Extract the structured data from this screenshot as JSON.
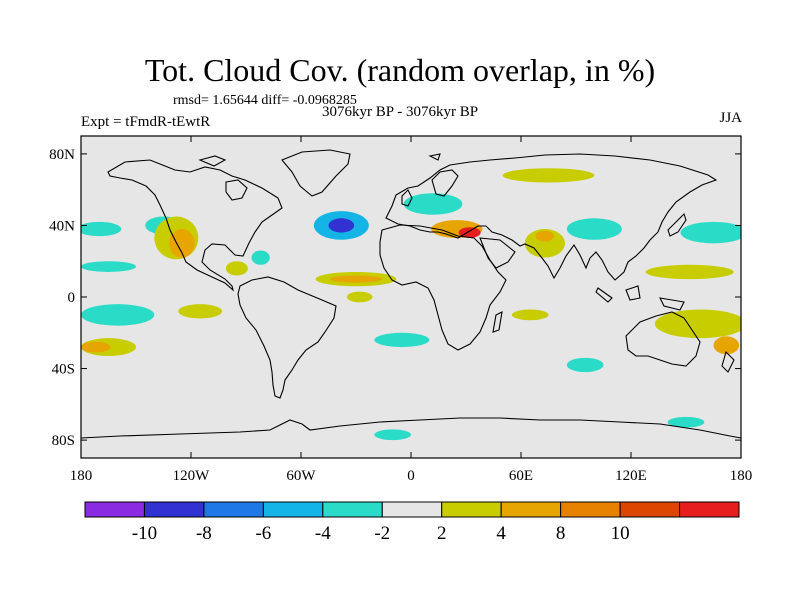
{
  "title": "Tot. Cloud Cov. (random overlap, in %)",
  "stats_text": "rmsd= 1.65644 diff= -0.0968285",
  "period_text": "3076kyr BP - 3076kyr BP",
  "experiment_text": "Expt = tFmdR-tEwtR",
  "season": "JJA",
  "lat_ticks": [
    {
      "lat": 80,
      "label": "80N"
    },
    {
      "lat": 40,
      "label": "40N"
    },
    {
      "lat": 0,
      "label": "0"
    },
    {
      "lat": -40,
      "label": "40S"
    },
    {
      "lat": -80,
      "label": "80S"
    }
  ],
  "lon_ticks": [
    {
      "lon": -180,
      "label": "180"
    },
    {
      "lon": -120,
      "label": "120W"
    },
    {
      "lon": -60,
      "label": "60W"
    },
    {
      "lon": 0,
      "label": "0"
    },
    {
      "lon": 60,
      "label": "60E"
    },
    {
      "lon": 120,
      "label": "120E"
    },
    {
      "lon": 180,
      "label": "180"
    }
  ],
  "colorbar": {
    "colors": [
      "#8a2be2",
      "#3232d2",
      "#1e78e6",
      "#14b4e6",
      "#2adcc8",
      "#e6e6e6",
      "#c8cd00",
      "#e6a500",
      "#e68200",
      "#dc4600",
      "#e61e1e"
    ],
    "labels": [
      "-10",
      "-8",
      "-6",
      "-4",
      "-2",
      "2",
      "4",
      "8",
      "10"
    ]
  },
  "colors": {
    "background": "#e6e6e6",
    "coast": "#000000"
  },
  "anomalies": [
    {
      "name": "n-atlantic-low",
      "lon": -38,
      "lat": 40,
      "rx": 15,
      "ry": 8,
      "level": -4
    },
    {
      "name": "n-atlantic-low-core",
      "lon": -38,
      "lat": 40,
      "rx": 7,
      "ry": 4,
      "level": -8
    },
    {
      "name": "n-pacific-low-w",
      "lon": -170,
      "lat": 38,
      "rx": 12,
      "ry": 4,
      "level": -2
    },
    {
      "name": "n-pacific-low-e",
      "lon": -135,
      "lat": 40,
      "rx": 10,
      "ry": 5,
      "level": -2
    },
    {
      "name": "ne-pacific-high",
      "lon": -128,
      "lat": 33,
      "rx": 12,
      "ry": 12,
      "level": 2
    },
    {
      "name": "ne-pacific-high-core",
      "lon": -125,
      "lat": 30,
      "rx": 7,
      "ry": 8,
      "level": 4
    },
    {
      "name": "gulf-low",
      "lon": -82,
      "lat": 22,
      "rx": 5,
      "ry": 4,
      "level": -2
    },
    {
      "name": "mexico-high",
      "lon": -95,
      "lat": 16,
      "rx": 6,
      "ry": 4,
      "level": 2
    },
    {
      "name": "itcz-high",
      "lon": -30,
      "lat": 10,
      "rx": 22,
      "ry": 4,
      "level": 2
    },
    {
      "name": "itcz-core",
      "lon": -30,
      "lat": 10,
      "rx": 14,
      "ry": 2,
      "level": 4
    },
    {
      "name": "eq-atlantic-high",
      "lon": -28,
      "lat": 0,
      "rx": 7,
      "ry": 3,
      "level": 2
    },
    {
      "name": "europe-low",
      "lon": 12,
      "lat": 52,
      "rx": 16,
      "ry": 6,
      "level": -2
    },
    {
      "name": "med-high",
      "lon": 25,
      "lat": 38,
      "rx": 14,
      "ry": 5,
      "level": 4
    },
    {
      "name": "med-core",
      "lon": 32,
      "lat": 36,
      "rx": 6,
      "ry": 3,
      "level": 10
    },
    {
      "name": "siberia-high",
      "lon": 75,
      "lat": 68,
      "rx": 25,
      "ry": 4,
      "level": 2
    },
    {
      "name": "india-high",
      "lon": 73,
      "lat": 30,
      "rx": 11,
      "ry": 8,
      "level": 2
    },
    {
      "name": "india-core",
      "lon": 73,
      "lat": 34,
      "rx": 5,
      "ry": 3,
      "level": 4
    },
    {
      "name": "tibet-low",
      "lon": 100,
      "lat": 38,
      "rx": 15,
      "ry": 6,
      "level": -2
    },
    {
      "name": "nw-pacific-low",
      "lon": 165,
      "lat": 36,
      "rx": 18,
      "ry": 6,
      "level": -2
    },
    {
      "name": "trop-w-pacific-high",
      "lon": 152,
      "lat": 14,
      "rx": 24,
      "ry": 4,
      "level": 2
    },
    {
      "name": "e-pacific-low",
      "lon": -165,
      "lat": 17,
      "rx": 15,
      "ry": 3,
      "level": -2
    },
    {
      "name": "sw-pacific-low",
      "lon": -160,
      "lat": -10,
      "rx": 20,
      "ry": 6,
      "level": -2
    },
    {
      "name": "e-pacific-high",
      "lon": -115,
      "lat": -8,
      "rx": 12,
      "ry": 4,
      "level": 2
    },
    {
      "name": "s-pacific-high",
      "lon": -165,
      "lat": -28,
      "rx": 15,
      "ry": 5,
      "level": 2
    },
    {
      "name": "s-pacific-core",
      "lon": -172,
      "lat": -28,
      "rx": 8,
      "ry": 3,
      "level": 4
    },
    {
      "name": "s-atlantic-low",
      "lon": -5,
      "lat": -24,
      "rx": 15,
      "ry": 4,
      "level": -2
    },
    {
      "name": "indian-ocean-high",
      "lon": 65,
      "lat": -10,
      "rx": 10,
      "ry": 3,
      "level": 2
    },
    {
      "name": "australia-high",
      "lon": 158,
      "lat": -15,
      "rx": 25,
      "ry": 8,
      "level": 2
    },
    {
      "name": "australia-core",
      "lon": 172,
      "lat": -27,
      "rx": 7,
      "ry": 5,
      "level": 4
    },
    {
      "name": "s-indian-low",
      "lon": 95,
      "lat": -38,
      "rx": 10,
      "ry": 4,
      "level": -2
    },
    {
      "name": "antarctic-low",
      "lon": -10,
      "lat": -77,
      "rx": 10,
      "ry": 3,
      "level": -2
    },
    {
      "name": "ross-low",
      "lon": 150,
      "lat": -70,
      "rx": 10,
      "ry": 3,
      "level": -2
    }
  ]
}
